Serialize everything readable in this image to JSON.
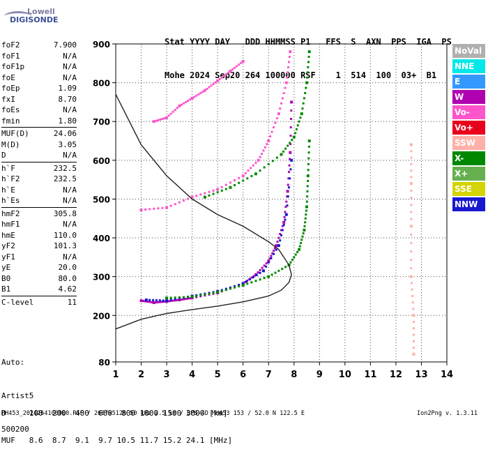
{
  "logo": {
    "line1": "Lowell",
    "line2": "DIGISONDE"
  },
  "header": {
    "labels": "Stat YYYY DAY   DDD HHMMSS P1   FFS  S  AXN  PPS  IGA  PS",
    "values": "Mohe 2024 Sep20 264 100000 RSF    1  514  100  03+  B1"
  },
  "params": {
    "group1": [
      [
        "foF2",
        "7.900"
      ],
      [
        "foF1",
        "N/A"
      ],
      [
        "foF1p",
        "N/A"
      ],
      [
        "foE",
        "N/A"
      ],
      [
        "foEp",
        "1.09"
      ],
      [
        "fxI",
        "8.70"
      ],
      [
        "foEs",
        "N/A"
      ],
      [
        "fmin",
        "1.80"
      ]
    ],
    "group2": [
      [
        "MUF(D)",
        "24.06"
      ],
      [
        "M(D)",
        "3.05"
      ],
      [
        "D",
        "N/A"
      ]
    ],
    "group3": [
      [
        "h`F",
        "232.5"
      ],
      [
        "h`F2",
        "232.5"
      ],
      [
        "h`E",
        "N/A"
      ],
      [
        "h`Es",
        "N/A"
      ]
    ],
    "group4": [
      [
        "hmF2",
        "305.8"
      ],
      [
        "hmF1",
        "N/A"
      ],
      [
        "hmE",
        "110.0"
      ],
      [
        "yF2",
        "101.3"
      ],
      [
        "yF1",
        "N/A"
      ],
      [
        "yE",
        "20.0"
      ],
      [
        "B0",
        "80.0"
      ],
      [
        "B1",
        "4.62"
      ]
    ],
    "group5": [
      [
        "C-level",
        "11"
      ]
    ]
  },
  "auto": {
    "line1": "Auto:",
    "line2": "Artist5",
    "line3": "500200"
  },
  "legend": [
    {
      "label": "NoVal",
      "color": "#b0b0b0"
    },
    {
      "label": "NNE",
      "color": "#00e8e8"
    },
    {
      "label": "E",
      "color": "#3399ff"
    },
    {
      "label": "W",
      "color": "#b000b0"
    },
    {
      "label": "Vo-",
      "color": "#ff55cc"
    },
    {
      "label": "Vo+",
      "color": "#e8001c"
    },
    {
      "label": "SSW",
      "color": "#ffb0a8"
    },
    {
      "label": "X-",
      "color": "#008800"
    },
    {
      "label": "X+",
      "color": "#66b050"
    },
    {
      "label": "SSE",
      "color": "#d4d400"
    },
    {
      "label": "NNW",
      "color": "#1818d0"
    }
  ],
  "muf_table": {
    "d_row": "D     100  200  400  600  800 1000 1500 3000 [km]",
    "muf_row": "MUF   8.6  8.7  9.1  9.7 10.5 11.7 15.2 24.1 [MHz]"
  },
  "footer": "MH453_2024264100000.RSF / 260fx512h 50 kHz 2.5 km / DPS-4D MH453 153 / 52.0 N 122.5 E",
  "version": "Ion2Png v. 1.3.11",
  "chart_data": {
    "type": "scatter",
    "title": "",
    "xlabel": "",
    "ylabel": "",
    "xlim": [
      1,
      14
    ],
    "ylim": [
      80,
      900
    ],
    "x_ticks": [
      1,
      2,
      3,
      4,
      5,
      6,
      7,
      8,
      9,
      10,
      11,
      12,
      13,
      14
    ],
    "y_ticks": [
      80,
      200,
      300,
      400,
      500,
      600,
      700,
      800,
      900
    ],
    "series": [
      {
        "name": "W",
        "color": "#b000b0",
        "x": [
          2.0,
          2.5,
          3.0,
          3.5,
          4.0,
          5.0,
          6.0,
          6.5,
          7.0,
          7.3,
          7.6,
          7.75,
          7.85,
          7.9
        ],
        "y": [
          238,
          233,
          236,
          240,
          245,
          258,
          282,
          305,
          340,
          380,
          440,
          520,
          620,
          750
        ]
      },
      {
        "name": "NNW",
        "color": "#1818d0",
        "x": [
          2.2,
          3.0,
          4.0,
          5.0,
          6.0,
          6.8,
          7.4,
          7.7,
          7.9
        ],
        "y": [
          240,
          238,
          250,
          262,
          282,
          315,
          380,
          460,
          600
        ]
      },
      {
        "name": "Vo-",
        "color": "#ff55cc",
        "x": [
          2.0,
          3.0,
          4.0,
          5.0,
          6.0,
          6.6,
          7.0,
          7.4,
          7.7,
          7.85
        ],
        "y": [
          472,
          478,
          505,
          525,
          560,
          600,
          650,
          720,
          800,
          880
        ]
      },
      {
        "name": "Vo-",
        "color": "#ff55cc",
        "x": [
          2.5,
          3.0,
          3.5,
          4.0,
          4.5,
          5.0,
          5.5,
          6.0
        ],
        "y": [
          700,
          710,
          740,
          760,
          780,
          805,
          830,
          855
        ]
      },
      {
        "name": "X-",
        "color": "#008800",
        "x": [
          3.0,
          4.0,
          5.0,
          6.0,
          7.0,
          7.8,
          8.2,
          8.4,
          8.5,
          8.55,
          8.6
        ],
        "y": [
          245,
          248,
          260,
          278,
          300,
          330,
          370,
          420,
          480,
          560,
          650
        ]
      },
      {
        "name": "X-",
        "color": "#008800",
        "x": [
          4.5,
          5.5,
          6.5,
          7.5,
          8.0,
          8.3,
          8.5,
          8.6
        ],
        "y": [
          505,
          530,
          565,
          615,
          660,
          720,
          800,
          880
        ]
      },
      {
        "name": "SSW",
        "color": "#ffb0a8",
        "x": [
          12.6,
          12.6,
          12.6,
          12.6,
          12.7,
          12.7
        ],
        "y": [
          640,
          540,
          430,
          300,
          200,
          100
        ]
      }
    ],
    "profile": {
      "x": [
        1.0,
        2.0,
        3.0,
        4.0,
        5.0,
        6.0,
        7.0,
        7.5,
        7.8,
        7.9,
        7.8,
        7.4,
        7.0,
        6.0,
        5.0,
        4.0,
        3.0,
        2.0,
        1.0
      ],
      "y": [
        165,
        190,
        205,
        215,
        224,
        235,
        250,
        265,
        285,
        305,
        330,
        370,
        390,
        430,
        460,
        500,
        560,
        640,
        770
      ]
    }
  }
}
